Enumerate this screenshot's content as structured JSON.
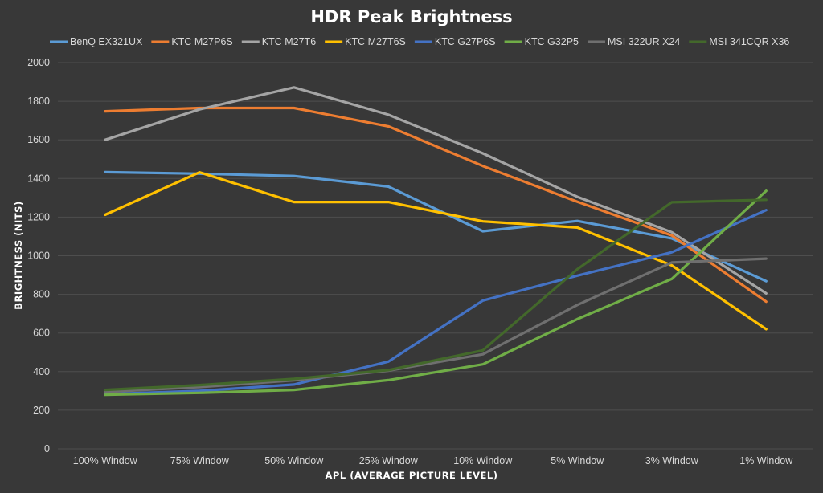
{
  "chart_data": {
    "type": "line",
    "title": "HDR Peak Brightness",
    "xlabel": "APL (AVERAGE PICTURE LEVEL)",
    "ylabel": "BRIGHTNESS (NITS)",
    "ylim": [
      0,
      2000
    ],
    "yticks": [
      0,
      200,
      400,
      600,
      800,
      1000,
      1200,
      1400,
      1600,
      1800,
      2000
    ],
    "categories": [
      "100% Window",
      "75% Window",
      "50% Window",
      "25% Window",
      "10% Window",
      "5% Window",
      "3% Window",
      "1% Window"
    ],
    "grid": true,
    "legend_position": "top",
    "series": [
      {
        "name": "BenQ EX321UX",
        "color": "#5b9bd5",
        "values": [
          1433,
          1425,
          1413,
          1358,
          1127,
          1180,
          1090,
          868
        ]
      },
      {
        "name": "KTC M27P6S",
        "color": "#ed7d31",
        "values": [
          1748,
          1765,
          1765,
          1670,
          1465,
          1280,
          1105,
          762
        ]
      },
      {
        "name": "KTC M27T6",
        "color": "#a5a5a5",
        "values": [
          1600,
          1758,
          1872,
          1730,
          1530,
          1305,
          1122,
          805
        ]
      },
      {
        "name": "KTC M27T6S",
        "color": "#ffc000",
        "values": [
          1212,
          1432,
          1278,
          1278,
          1178,
          1146,
          950,
          620
        ]
      },
      {
        "name": "KTC G27P6S",
        "color": "#4472c4",
        "values": [
          283,
          300,
          333,
          452,
          768,
          897,
          1018,
          1236
        ]
      },
      {
        "name": "KTC G32P5",
        "color": "#70ad47",
        "values": [
          280,
          290,
          305,
          356,
          438,
          672,
          880,
          1336
        ]
      },
      {
        "name": "MSI 322UR X24",
        "color": "#6f6f6f",
        "values": [
          295,
          320,
          355,
          405,
          490,
          745,
          965,
          985
        ]
      },
      {
        "name": "MSI 341CQR X36",
        "color": "#43682b",
        "values": [
          305,
          330,
          362,
          408,
          510,
          930,
          1277,
          1290
        ]
      }
    ]
  }
}
